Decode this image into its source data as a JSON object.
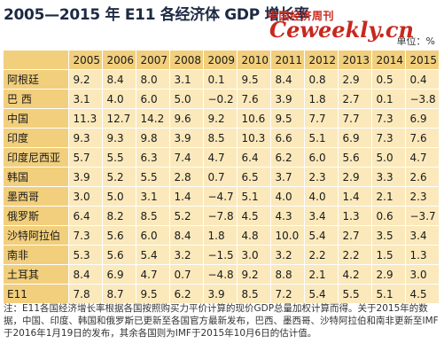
{
  "title": "2005—2015 年 E11 各经济体 GDP 增长率",
  "watermark": {
    "cn": "中国经济周刊",
    "en": "Ceweekly.cn"
  },
  "unit": "单位：%",
  "table": {
    "years": [
      "2005",
      "2006",
      "2007",
      "2008",
      "2009",
      "2010",
      "2011",
      "2012",
      "2013",
      "2014",
      "2015"
    ],
    "rows": [
      {
        "country": "阿根廷",
        "values": [
          "9.2",
          "8.4",
          "8.0",
          "3.1",
          "0.1",
          "9.5",
          "8.4",
          "0.8",
          "2.9",
          "0.5",
          "0.4"
        ]
      },
      {
        "country": "巴 西",
        "values": [
          "3.1",
          "4.0",
          "6.0",
          "5.0",
          "−0.2",
          "7.6",
          "3.9",
          "1.8",
          "2.7",
          "0.1",
          "−3.8"
        ]
      },
      {
        "country": "中国",
        "values": [
          "11.3",
          "12.7",
          "14.2",
          "9.6",
          "9.2",
          "10.6",
          "9.5",
          "7.7",
          "7.7",
          "7.3",
          "6.9"
        ]
      },
      {
        "country": "印度",
        "values": [
          "9.3",
          "9.3",
          "9.8",
          "3.9",
          "8.5",
          "10.3",
          "6.6",
          "5.1",
          "6.9",
          "7.3",
          "7.6"
        ]
      },
      {
        "country": "印度尼西亚",
        "values": [
          "5.7",
          "5.5",
          "6.3",
          "7.4",
          "4.7",
          "6.4",
          "6.2",
          "6.0",
          "5.6",
          "5.0",
          "4.7"
        ]
      },
      {
        "country": "韩国",
        "values": [
          "3.9",
          "5.2",
          "5.5",
          "2.8",
          "0.7",
          "6.5",
          "3.7",
          "2.3",
          "2.9",
          "3.3",
          "2.6"
        ]
      },
      {
        "country": "墨西哥",
        "values": [
          "3.0",
          "5.0",
          "3.1",
          "1.4",
          "−4.7",
          "5.1",
          "4.0",
          "4.0",
          "1.4",
          "2.1",
          "2.3"
        ]
      },
      {
        "country": "俄罗斯",
        "values": [
          "6.4",
          "8.2",
          "8.5",
          "5.2",
          "−7.8",
          "4.5",
          "4.3",
          "3.4",
          "1.3",
          "0.6",
          "−3.7"
        ]
      },
      {
        "country": "沙特阿拉伯",
        "values": [
          "7.3",
          "5.6",
          "6.0",
          "8.4",
          "1.8",
          "4.8",
          "10.0",
          "5.4",
          "2.7",
          "3.5",
          "3.4"
        ]
      },
      {
        "country": "南非",
        "values": [
          "5.3",
          "5.6",
          "5.4",
          "3.2",
          "−1.5",
          "3.0",
          "3.2",
          "2.2",
          "2.2",
          "1.5",
          "1.3"
        ]
      },
      {
        "country": "土耳其",
        "values": [
          "8.4",
          "6.9",
          "4.7",
          "0.7",
          "−4.8",
          "9.2",
          "8.8",
          "2.1",
          "4.2",
          "2.9",
          "3.0"
        ]
      },
      {
        "country": "E11",
        "values": [
          "7.8",
          "8.7",
          "9.5",
          "6.2",
          "3.9",
          "8.5",
          "7.2",
          "5.4",
          "5.5",
          "5.1",
          "4.5"
        ]
      }
    ]
  },
  "note": "注：E11各国经济增长率根据各国按照购买力平价计算的现价GDP总量加权计算而得。关于2015年的数据，中国、印度、韩国和俄罗斯已更新至各国官方最新发布，巴西、墨西哥、沙特阿拉伯和南非更新至IMF于2016年1月19日的发布，其余各国则为IMF于2015年10月6日的估计值。",
  "colors": {
    "title": "#1e2a44",
    "header_bg": "#f2cf7c",
    "cell_bg": "#fbe9bc",
    "watermark": "#c8281e"
  }
}
